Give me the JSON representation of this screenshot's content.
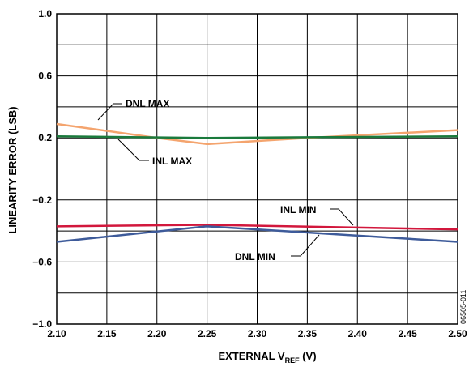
{
  "chart_data": {
    "type": "line",
    "xlabel_prefix": "EXTERNAL V",
    "xlabel_subscript": "REF",
    "xlabel_suffix": " (V)",
    "ylabel": "LINEARITY ERROR (LSB)",
    "xlim": [
      2.1,
      2.5
    ],
    "ylim": [
      -1.0,
      1.0
    ],
    "x_ticks": [
      "2.10",
      "2.15",
      "2.20",
      "2.25",
      "2.30",
      "2.35",
      "2.40",
      "2.45",
      "2.50"
    ],
    "y_ticks": [
      "1.0",
      "0.6",
      "0.2",
      "−0.2",
      "−0.6",
      "−1.0"
    ],
    "y_tick_values": [
      1.0,
      0.6,
      0.2,
      -0.2,
      -0.6,
      -1.0
    ],
    "x_tick_values": [
      2.1,
      2.15,
      2.2,
      2.25,
      2.3,
      2.35,
      2.4,
      2.45,
      2.5
    ],
    "grid": true,
    "figure_id": "06505-011",
    "series": [
      {
        "name": "DNL MAX",
        "color": "#F4A46E",
        "x": [
          2.1,
          2.2,
          2.25,
          2.35,
          2.5
        ],
        "y": [
          0.29,
          0.2,
          0.16,
          0.2,
          0.25
        ]
      },
      {
        "name": "INL MAX",
        "color": "#1A7A3C",
        "x": [
          2.1,
          2.25,
          2.5
        ],
        "y": [
          0.21,
          0.2,
          0.21
        ]
      },
      {
        "name": "INL MIN",
        "color": "#D2173C",
        "x": [
          2.1,
          2.25,
          2.5
        ],
        "y": [
          -0.37,
          -0.36,
          -0.39
        ]
      },
      {
        "name": "DNL MIN",
        "color": "#3E5B9A",
        "x": [
          2.1,
          2.25,
          2.5
        ],
        "y": [
          -0.47,
          -0.37,
          -0.47
        ]
      }
    ]
  }
}
